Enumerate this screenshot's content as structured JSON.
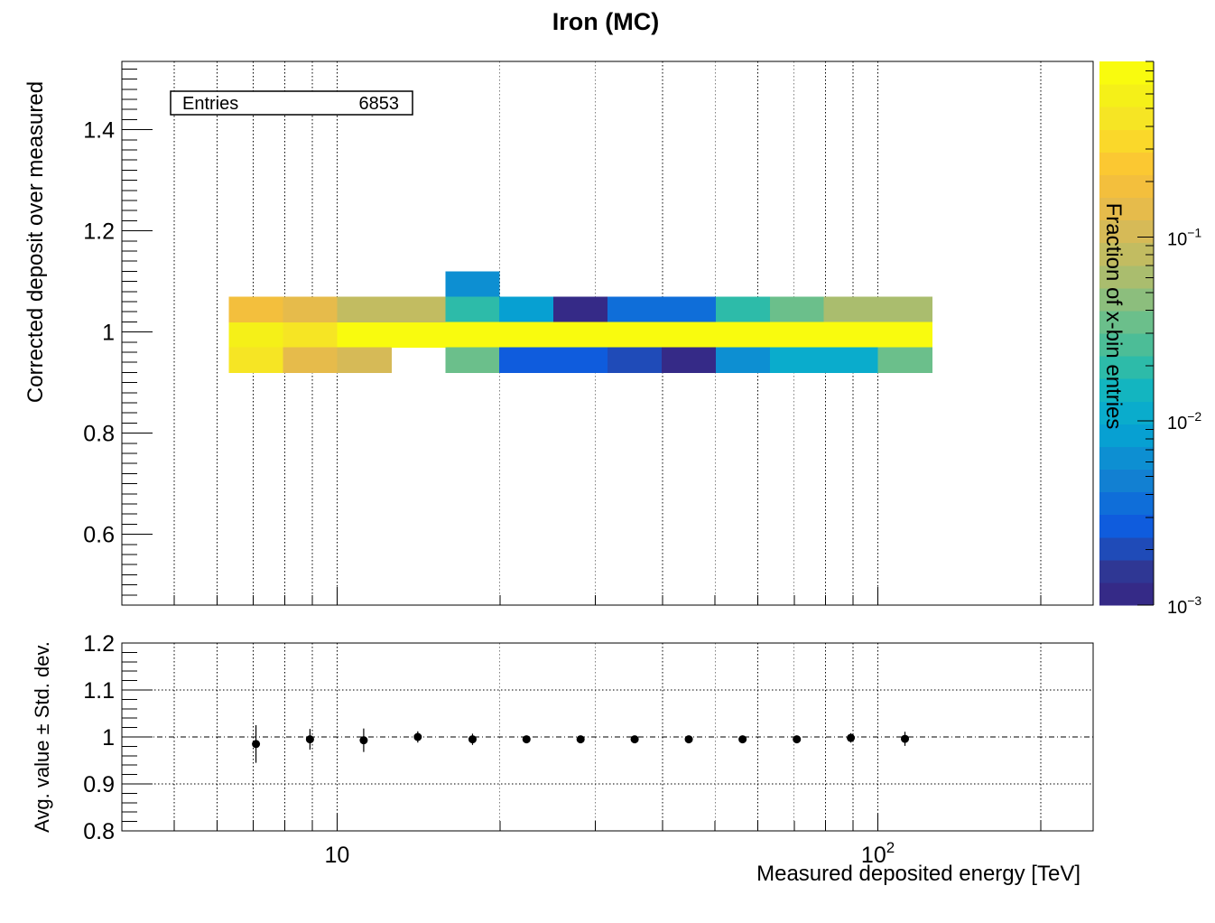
{
  "chart_data": [
    {
      "type": "heatmap",
      "title": "Iron (MC)",
      "xlabel": "Measured deposited energy [TeV]",
      "ylabel": "Corrected deposit over measured",
      "xscale": "log",
      "xlim": [
        4.0,
        250.0
      ],
      "ylim": [
        0.46,
        1.535
      ],
      "grid": true,
      "stats_box": {
        "label": "Entries",
        "value": "6853"
      },
      "yticks": [
        "0.6",
        "0.8",
        "1",
        "1.2",
        "1.4"
      ],
      "colorbar": {
        "label": "Fraction of x-bin entries",
        "scale": "log",
        "range": [
          0.001,
          0.9
        ],
        "ticks": [
          {
            "value": 0.1,
            "base": "10",
            "exp": "−1"
          },
          {
            "value": 0.01,
            "base": "10",
            "exp": "−2"
          },
          {
            "value": 0.001,
            "base": "10",
            "exp": "−3"
          }
        ],
        "colors": [
          "#352a87",
          "#2f3794",
          "#1f4bb8",
          "#0f5cdd",
          "#0f6ed9",
          "#1280d2",
          "#0d8fd2",
          "#07a0d2",
          "#0aaccc",
          "#13b5c0",
          "#2dbba9",
          "#4cbd97",
          "#6bbf8b",
          "#8cbe7d",
          "#aabd6e",
          "#c2bc61",
          "#d6ba57",
          "#e6bb4b",
          "#f3bf3d",
          "#fbc832",
          "#fad82a",
          "#f6e524",
          "#f5f018",
          "#f9fb0e"
        ]
      },
      "x_edges": [
        6.31,
        7.94,
        10.0,
        12.6,
        15.85,
        19.95,
        25.12,
        31.62,
        39.81,
        50.12,
        63.1,
        79.43,
        100.0,
        125.9
      ],
      "y_edges": [
        0.92,
        0.97,
        1.02,
        1.07,
        1.12
      ],
      "cells": [
        {
          "x": 0,
          "y": 1,
          "v": 0.55
        },
        {
          "x": 0,
          "y": 2,
          "v": 0.2
        },
        {
          "x": 0,
          "y": 0,
          "v": 0.4
        },
        {
          "x": 1,
          "y": 1,
          "v": 0.4
        },
        {
          "x": 1,
          "y": 2,
          "v": 0.15
        },
        {
          "x": 1,
          "y": 0,
          "v": 0.15
        },
        {
          "x": 2,
          "y": 1,
          "v": 0.8
        },
        {
          "x": 2,
          "y": 2,
          "v": 0.08
        },
        {
          "x": 2,
          "y": 0,
          "v": 0.12
        },
        {
          "x": 3,
          "y": 1,
          "v": 0.85
        },
        {
          "x": 3,
          "y": 2,
          "v": 0.08
        },
        {
          "x": 4,
          "y": 3,
          "v": 0.006
        },
        {
          "x": 4,
          "y": 2,
          "v": 0.02
        },
        {
          "x": 4,
          "y": 1,
          "v": 0.9
        },
        {
          "x": 4,
          "y": 0,
          "v": 0.03
        },
        {
          "x": 5,
          "y": 2,
          "v": 0.008
        },
        {
          "x": 5,
          "y": 1,
          "v": 0.95
        },
        {
          "x": 5,
          "y": 0,
          "v": 0.003
        },
        {
          "x": 6,
          "y": 2,
          "v": 0.0012
        },
        {
          "x": 6,
          "y": 1,
          "v": 0.95
        },
        {
          "x": 6,
          "y": 0,
          "v": 0.003
        },
        {
          "x": 7,
          "y": 2,
          "v": 0.004
        },
        {
          "x": 7,
          "y": 1,
          "v": 0.95
        },
        {
          "x": 7,
          "y": 0,
          "v": 0.002
        },
        {
          "x": 8,
          "y": 2,
          "v": 0.004
        },
        {
          "x": 8,
          "y": 1,
          "v": 0.95
        },
        {
          "x": 8,
          "y": 0,
          "v": 0.0012
        },
        {
          "x": 9,
          "y": 2,
          "v": 0.02
        },
        {
          "x": 9,
          "y": 1,
          "v": 0.95
        },
        {
          "x": 9,
          "y": 0,
          "v": 0.006
        },
        {
          "x": 10,
          "y": 2,
          "v": 0.03
        },
        {
          "x": 10,
          "y": 1,
          "v": 0.95
        },
        {
          "x": 10,
          "y": 0,
          "v": 0.012
        },
        {
          "x": 11,
          "y": 2,
          "v": 0.06
        },
        {
          "x": 11,
          "y": 1,
          "v": 0.95
        },
        {
          "x": 11,
          "y": 0,
          "v": 0.012
        },
        {
          "x": 12,
          "y": 2,
          "v": 0.06
        },
        {
          "x": 12,
          "y": 1,
          "v": 0.95
        },
        {
          "x": 12,
          "y": 0,
          "v": 0.03
        }
      ]
    },
    {
      "type": "scatter",
      "xlabel": "Measured deposited energy [TeV]",
      "ylabel": "Avg. value ± Std. dev.",
      "xscale": "log",
      "xlim": [
        4.0,
        250.0
      ],
      "ylim": [
        0.8,
        1.2
      ],
      "grid": true,
      "reference_line": 1.0,
      "yticks": [
        "0.8",
        "0.9",
        "1",
        "1.1",
        "1.2"
      ],
      "xticks": [
        {
          "value": 10,
          "base": "10",
          "exp": ""
        },
        {
          "value": 100,
          "base": "10",
          "exp": "2"
        }
      ],
      "points": [
        {
          "x": 7.08,
          "y": 0.985,
          "err": 0.04
        },
        {
          "x": 8.91,
          "y": 0.995,
          "err": 0.022
        },
        {
          "x": 11.2,
          "y": 0.993,
          "err": 0.025
        },
        {
          "x": 14.1,
          "y": 1.0,
          "err": 0.012
        },
        {
          "x": 17.8,
          "y": 0.995,
          "err": 0.012
        },
        {
          "x": 22.4,
          "y": 0.995,
          "err": 0.006
        },
        {
          "x": 28.2,
          "y": 0.995,
          "err": 0.006
        },
        {
          "x": 35.5,
          "y": 0.995,
          "err": 0.006
        },
        {
          "x": 44.7,
          "y": 0.995,
          "err": 0.006
        },
        {
          "x": 56.2,
          "y": 0.995,
          "err": 0.006
        },
        {
          "x": 70.8,
          "y": 0.995,
          "err": 0.008
        },
        {
          "x": 89.1,
          "y": 0.998,
          "err": 0.01
        },
        {
          "x": 112.2,
          "y": 0.996,
          "err": 0.015
        }
      ]
    }
  ]
}
